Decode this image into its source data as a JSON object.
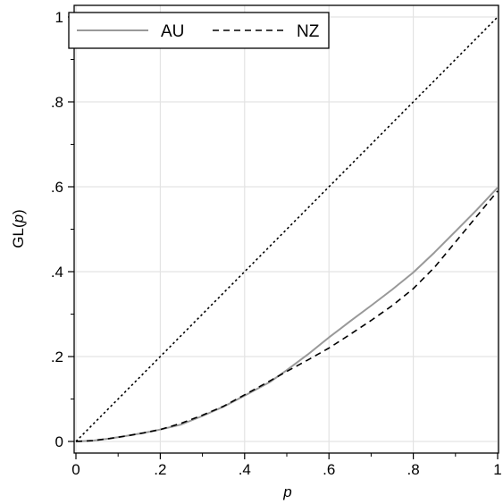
{
  "chart_data": {
    "type": "line",
    "title": "",
    "xlabel": "p",
    "ylabel": "GL(p)",
    "ylabel_prefix": "GL(",
    "ylabel_var": "p",
    "ylabel_suffix": ")",
    "xlim": [
      0,
      1
    ],
    "ylim": [
      0,
      1
    ],
    "x_ticks": [
      0,
      0.2,
      0.4,
      0.6,
      0.8,
      1
    ],
    "x_tick_labels": [
      "0",
      ".2",
      ".4",
      ".6",
      ".8",
      "1"
    ],
    "y_ticks": [
      0,
      0.2,
      0.4,
      0.6,
      0.8,
      1
    ],
    "y_tick_labels": [
      "0",
      ".2",
      ".4",
      ".6",
      ".8",
      "1"
    ],
    "grid": true,
    "legend_position": "top-left",
    "series": [
      {
        "name": "AU",
        "style": "solid",
        "color": "#999999",
        "x": [
          0,
          0.04,
          0.08,
          0.12,
          0.16,
          0.2,
          0.25,
          0.3,
          0.35,
          0.4,
          0.46,
          0.5,
          0.55,
          0.6,
          0.65,
          0.7,
          0.75,
          0.8,
          0.85,
          0.9,
          0.95,
          1
        ],
        "y": [
          0,
          0.002,
          0.007,
          0.013,
          0.02,
          0.028,
          0.04,
          0.06,
          0.082,
          0.108,
          0.14,
          0.168,
          0.205,
          0.245,
          0.283,
          0.32,
          0.358,
          0.398,
          0.445,
          0.495,
          0.545,
          0.598
        ]
      },
      {
        "name": "NZ",
        "style": "dashed",
        "color": "#000000",
        "x": [
          0,
          0.04,
          0.08,
          0.12,
          0.16,
          0.2,
          0.25,
          0.3,
          0.35,
          0.4,
          0.45,
          0.5,
          0.55,
          0.6,
          0.65,
          0.7,
          0.75,
          0.8,
          0.85,
          0.9,
          0.95,
          1
        ],
        "y": [
          0,
          0.002,
          0.007,
          0.013,
          0.02,
          0.028,
          0.043,
          0.062,
          0.083,
          0.11,
          0.137,
          0.165,
          0.192,
          0.22,
          0.252,
          0.285,
          0.32,
          0.36,
          0.41,
          0.47,
          0.53,
          0.59
        ]
      },
      {
        "name": "",
        "style": "dotted",
        "color": "#000000",
        "x": [
          0,
          1
        ],
        "y": [
          0,
          1
        ]
      }
    ]
  }
}
